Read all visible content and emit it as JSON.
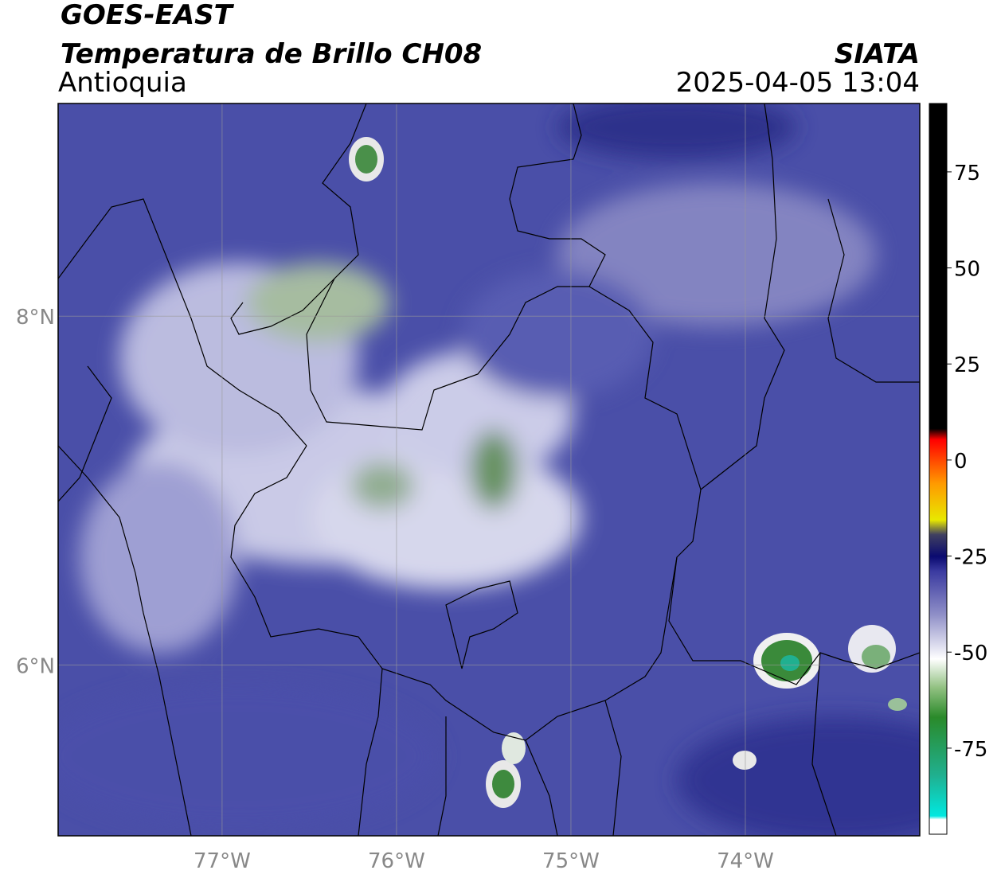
{
  "header": {
    "title": "GOES-EAST",
    "subtitle": "Temperatura de Brillo CH08",
    "region": "Antioquia",
    "source": "SIATA",
    "timestamp": "2025-04-05 13:04"
  },
  "map": {
    "xlim": [
      -77.94,
      -73.0
    ],
    "ylim": [
      5.02,
      9.22
    ],
    "xticks": [
      {
        "value": -77,
        "label": "77°W"
      },
      {
        "value": -76,
        "label": "76°W"
      },
      {
        "value": -75,
        "label": "75°W"
      },
      {
        "value": -74,
        "label": "74°W"
      }
    ],
    "yticks": [
      {
        "value": 8,
        "label": "8°N"
      },
      {
        "value": 6,
        "label": "6°N"
      }
    ],
    "grid": true
  },
  "colorbar": {
    "lim": [
      -97.4,
      92.8
    ],
    "ticks": [
      75,
      50,
      25,
      0,
      -25,
      -50,
      -75
    ]
  }
}
